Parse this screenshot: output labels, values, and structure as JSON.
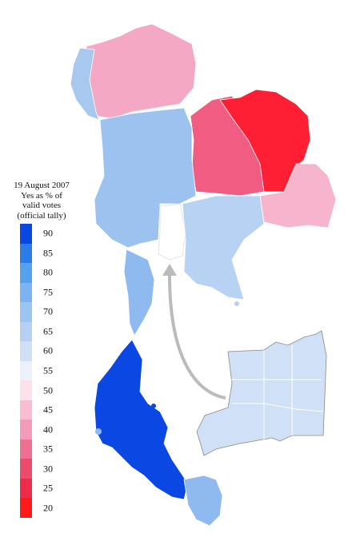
{
  "legend": {
    "title_lines": [
      "19 August 2007",
      "Yes as % of",
      "valid votes",
      "(official tally)"
    ],
    "ticks": [
      "90",
      "85",
      "80",
      "75",
      "70",
      "65",
      "60",
      "55",
      "50",
      "45",
      "40",
      "35",
      "30",
      "25",
      "20"
    ],
    "colors": [
      "#0a46e0",
      "#2d7be6",
      "#55a0ef",
      "#7cb3f2",
      "#9cc4f1",
      "#b5d0f3",
      "#cfe0f6",
      "#ebf1fb",
      "#fde0ea",
      "#f9bcd2",
      "#f49bbc",
      "#ee6f94",
      "#eb4c6c",
      "#ee2b48",
      "#ff1a1a"
    ]
  },
  "map": {
    "regions": {
      "north": "#f5a8c4",
      "north_west": "#a9c8f0",
      "northeast_west": "#f05c82",
      "northeast_east": "#ff1f35",
      "northeast_south": "#f7b4cd",
      "central": "#9cc2f0",
      "bangkok": "#ffffff",
      "east": "#b8d2f4",
      "upper_south": "#8fbaf0",
      "lower_south": "#0b48e3",
      "deep_south": "#8fbaf0"
    },
    "inset_color": "#d0e0f6",
    "arrow_color": "#bbbbbb"
  }
}
